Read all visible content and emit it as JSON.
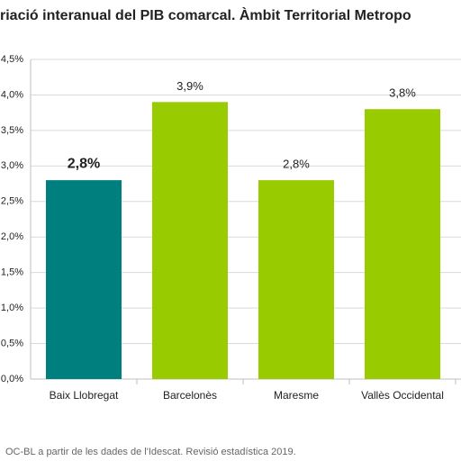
{
  "chart_data": {
    "type": "bar",
    "title": "riació interanual del PIB comarcal. Àmbit Territorial Metropo",
    "source": "OC-BL a partir de les dades de l'Idescat. Revisió estadística 2019.",
    "categories": [
      "Baix Llobregat",
      "Barcelonès",
      "Maresme",
      "Vallès Occidental"
    ],
    "values": [
      2.8,
      3.9,
      2.8,
      3.8
    ],
    "value_labels": [
      "2,8%",
      "3,9%",
      "2,8%",
      "3,8%"
    ],
    "colors": [
      "#007f7f",
      "#99cc00",
      "#99cc00",
      "#99cc00"
    ],
    "highlight": 0,
    "ylim": [
      0,
      4.5
    ],
    "yticks": [
      {
        "value": 0,
        "label": "0,0%"
      },
      {
        "value": 0.5,
        "label": "0,5%"
      },
      {
        "value": 1,
        "label": "1,0%"
      },
      {
        "value": 1.5,
        "label": "1,5%"
      },
      {
        "value": 2,
        "label": "2,0%"
      },
      {
        "value": 2.5,
        "label": "2,5%"
      },
      {
        "value": 3,
        "label": "3,0%"
      },
      {
        "value": 3.5,
        "label": "3,5%"
      },
      {
        "value": 4,
        "label": "4,0%"
      },
      {
        "value": 4.5,
        "label": "4,5%"
      }
    ],
    "grid": true
  }
}
